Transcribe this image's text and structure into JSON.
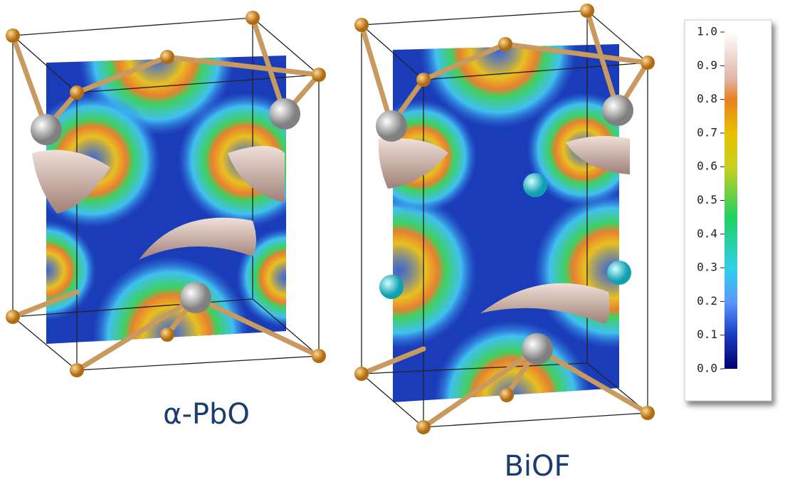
{
  "panels": [
    {
      "label": "α-PbO"
    },
    {
      "label": "BiOF"
    }
  ],
  "colorbar": {
    "lim": [
      0,
      1
    ],
    "ticks": [
      {
        "value": 1,
        "label": "1.0"
      },
      {
        "value": 0.9,
        "label": "0.9"
      },
      {
        "value": 0.8,
        "label": "0.8"
      },
      {
        "value": 0.7,
        "label": "0.7"
      },
      {
        "value": 0.6,
        "label": "0.6"
      },
      {
        "value": 0.5,
        "label": "0.5"
      },
      {
        "value": 0.4,
        "label": "0.4"
      },
      {
        "value": 0.3,
        "label": "0.3"
      },
      {
        "value": 0.2,
        "label": "0.2"
      },
      {
        "value": 0.1,
        "label": "0.1"
      },
      {
        "value": 0,
        "label": "0.0"
      }
    ]
  }
}
